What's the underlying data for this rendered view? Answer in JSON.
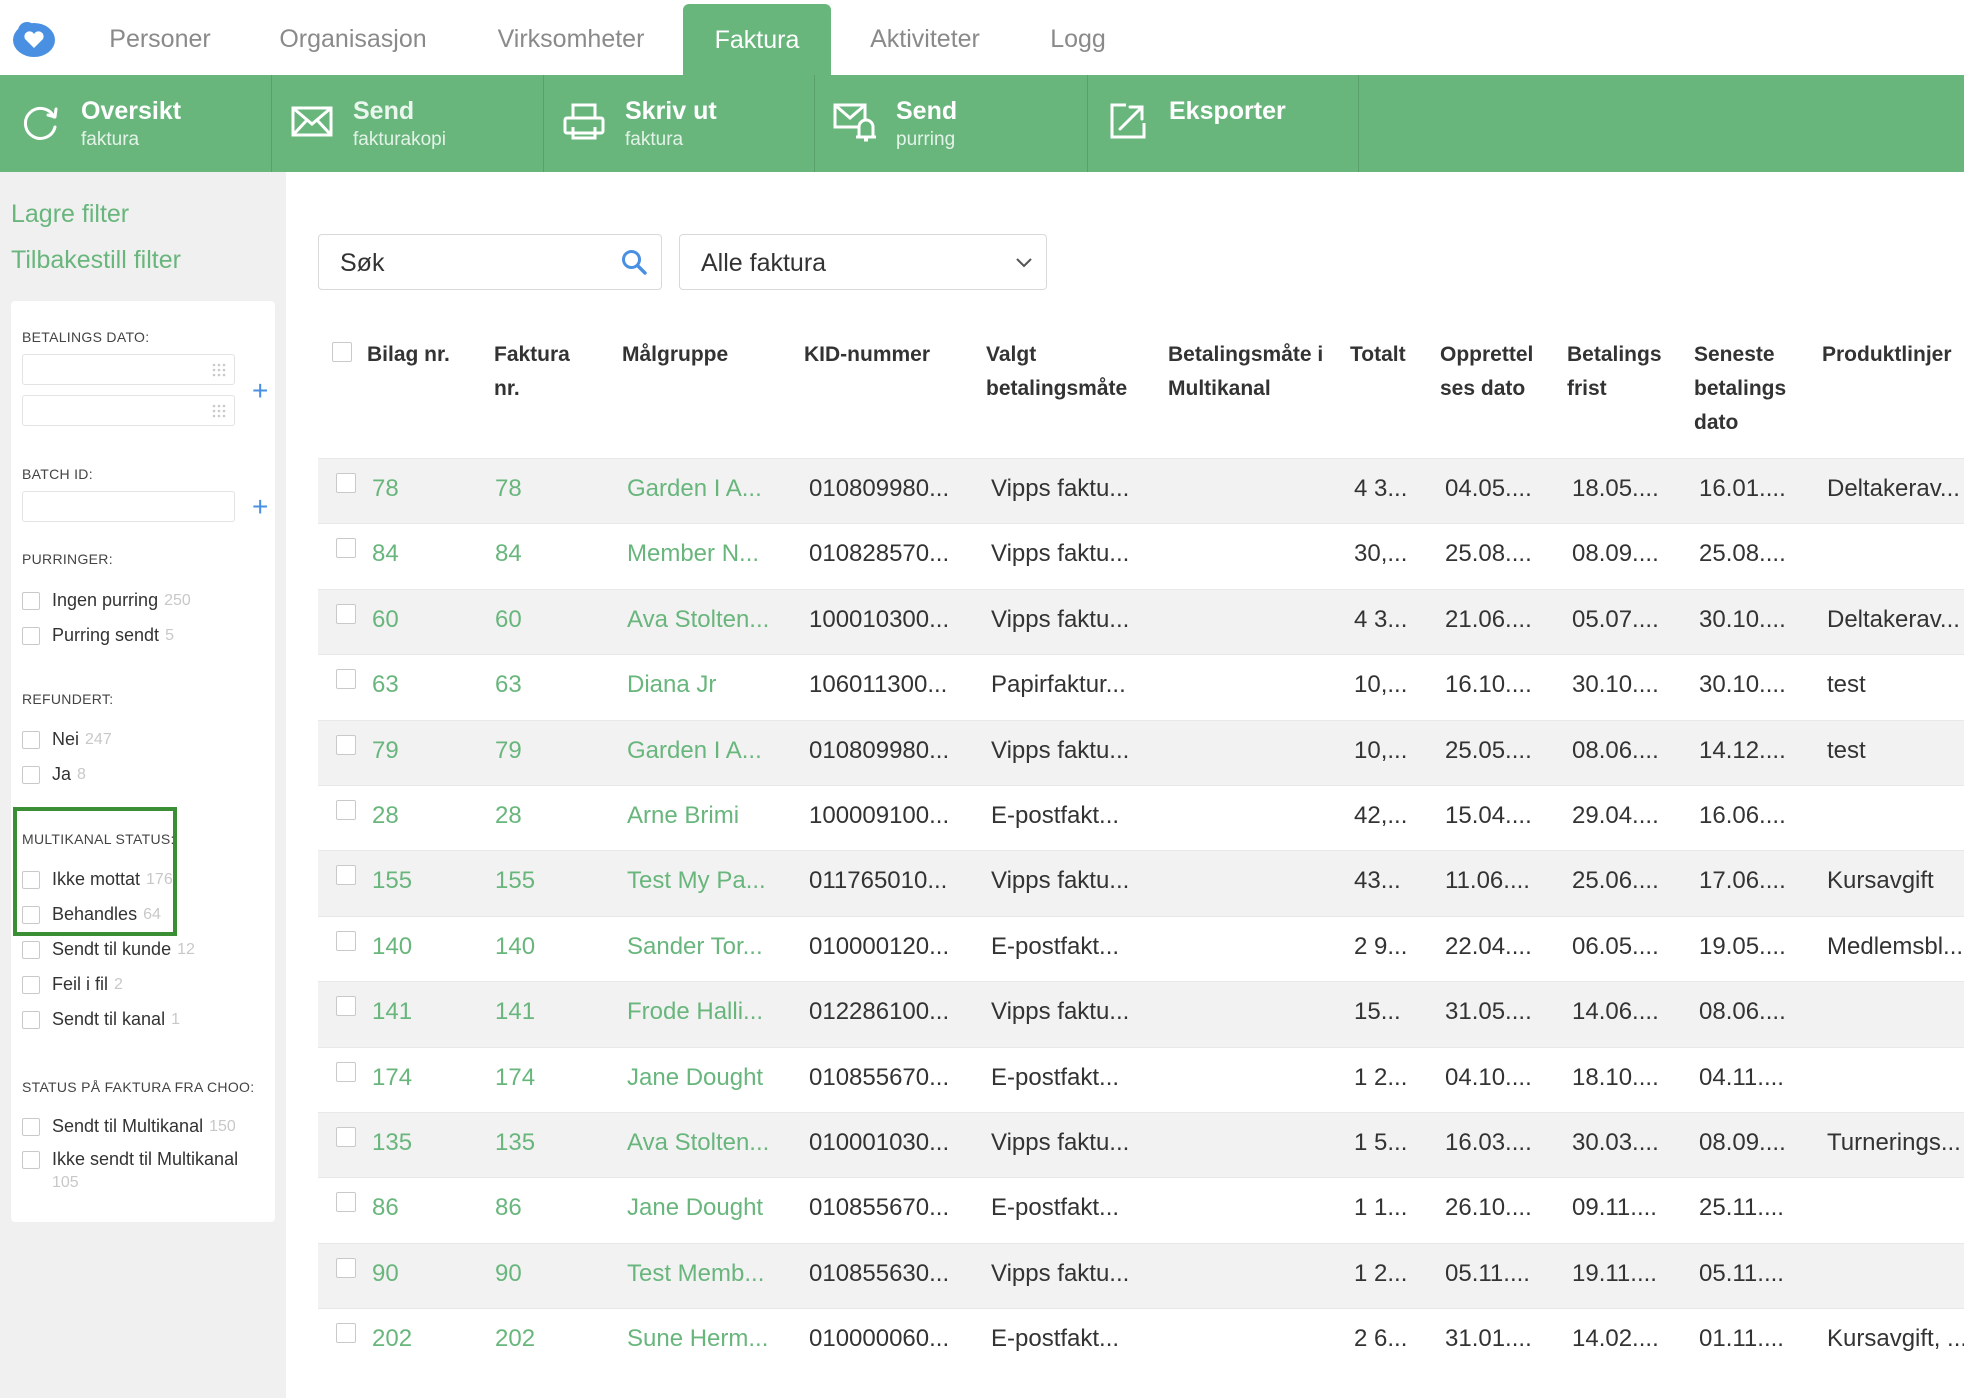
{
  "nav": {
    "tabs": [
      {
        "label": "Personer"
      },
      {
        "label": "Organisasjon"
      },
      {
        "label": "Virksomheter"
      },
      {
        "label": "Faktura"
      },
      {
        "label": "Aktiviteter"
      },
      {
        "label": "Logg"
      }
    ],
    "active_tab": "Faktura"
  },
  "toolbar": {
    "items": [
      {
        "title": "Oversikt",
        "sub": "faktura",
        "icon": "refresh-icon"
      },
      {
        "title": "Send",
        "sub": "fakturakopi",
        "icon": "envelope-icon"
      },
      {
        "title": "Skriv ut",
        "sub": "faktura",
        "icon": "printer-icon"
      },
      {
        "title": "Send",
        "sub": "purring",
        "icon": "envelope-bell-icon"
      },
      {
        "title": "Eksporter",
        "sub": "",
        "icon": "export-icon"
      }
    ]
  },
  "sidebar": {
    "save_filter": "Lagre filter",
    "reset_filter": "Tilbakestill filter",
    "payment_date_label": "BETALINGS DATO:",
    "batch_id_label": "BATCH ID:",
    "reminders_label": "PURRINGER:",
    "reminders": [
      {
        "label": "Ingen purring",
        "count": "250"
      },
      {
        "label": "Purring sendt",
        "count": "5"
      }
    ],
    "refunded_label": "REFUNDERT:",
    "refunded": [
      {
        "label": "Nei",
        "count": "247"
      },
      {
        "label": "Ja",
        "count": "8"
      }
    ],
    "multichannel_label": "MULTIKANAL STATUS:",
    "multichannel": [
      {
        "label": "Ikke mottat",
        "count": "176"
      },
      {
        "label": "Behandles",
        "count": "64"
      },
      {
        "label": "Sendt til kunde",
        "count": "12"
      },
      {
        "label": "Feil i fil",
        "count": "2"
      },
      {
        "label": "Sendt til kanal",
        "count": "1"
      }
    ],
    "choo_label": "STATUS PÅ FAKTURA FRA CHOO:",
    "choo": [
      {
        "label": "Sendt til Multikanal",
        "count": "150"
      },
      {
        "label": "Ikke sendt til Multikanal",
        "count": "105"
      }
    ]
  },
  "search": {
    "placeholder": "Søk"
  },
  "filter_select": {
    "value": "Alle faktura"
  },
  "table": {
    "headers": [
      "Bilag nr.",
      "Faktura nr.",
      "Målgruppe",
      "KID-nummer",
      "Valgt betalingsmåte",
      "Betalingsmåte i Multikanal",
      "Totalt",
      "Opprettel ses dato",
      "Betalings frist",
      "Seneste betalings dato",
      "Produktlinjer"
    ],
    "rows": [
      [
        "78",
        "78",
        "Garden I A...",
        "010809980...",
        "Vipps faktu...",
        "",
        "4 3...",
        "04.05....",
        "18.05....",
        "16.01....",
        "Deltakerav..."
      ],
      [
        "84",
        "84",
        "Member N...",
        "010828570...",
        "Vipps faktu...",
        "",
        "30,...",
        "25.08....",
        "08.09....",
        "25.08....",
        ""
      ],
      [
        "60",
        "60",
        "Ava Stolten...",
        "100010300...",
        "Vipps faktu...",
        "",
        "4 3...",
        "21.06....",
        "05.07....",
        "30.10....",
        "Deltakerav..."
      ],
      [
        "63",
        "63",
        "Diana Jr",
        "106011300...",
        "Papirfaktur...",
        "",
        "10,...",
        "16.10....",
        "30.10....",
        "30.10....",
        "test"
      ],
      [
        "79",
        "79",
        "Garden I A...",
        "010809980...",
        "Vipps faktu...",
        "",
        "10,...",
        "25.05....",
        "08.06....",
        "14.12....",
        "test"
      ],
      [
        "28",
        "28",
        "Arne Brimi",
        "100009100...",
        "E-postfakt...",
        "",
        "42,...",
        "15.04....",
        "29.04....",
        "16.06....",
        ""
      ],
      [
        "155",
        "155",
        "Test My Pa...",
        "011765010...",
        "Vipps faktu...",
        "",
        "43...",
        "11.06....",
        "25.06....",
        "17.06....",
        "Kursavgift"
      ],
      [
        "140",
        "140",
        "Sander Tor...",
        "010000120...",
        "E-postfakt...",
        "",
        "2 9...",
        "22.04....",
        "06.05....",
        "19.05....",
        "Medlemsbl..."
      ],
      [
        "141",
        "141",
        "Frode Halli...",
        "012286100...",
        "Vipps faktu...",
        "",
        "15...",
        "31.05....",
        "14.06....",
        "08.06....",
        ""
      ],
      [
        "174",
        "174",
        "Jane Dought",
        "010855670...",
        "E-postfakt...",
        "",
        "1 2...",
        "04.10....",
        "18.10....",
        "04.11....",
        ""
      ],
      [
        "135",
        "135",
        "Ava Stolten...",
        "010001030...",
        "Vipps faktu...",
        "",
        "1 5...",
        "16.03....",
        "30.03....",
        "08.09....",
        "Turnerings..."
      ],
      [
        "86",
        "86",
        "Jane Dought",
        "010855670...",
        "E-postfakt...",
        "",
        "1 1...",
        "26.10....",
        "09.11....",
        "25.11....",
        ""
      ],
      [
        "90",
        "90",
        "Test Memb...",
        "010855630...",
        "Vipps faktu...",
        "",
        "1 2...",
        "05.11....",
        "19.11....",
        "05.11....",
        ""
      ],
      [
        "202",
        "202",
        "Sune Herm...",
        "010000060...",
        "E-postfakt...",
        "",
        "2 6...",
        "31.01....",
        "14.02....",
        "01.11....",
        "Kursavgift, ..."
      ]
    ]
  },
  "colors": {
    "accent": "#69b67d",
    "plus": "#4a90e2",
    "highlight": "#3a8e33"
  }
}
